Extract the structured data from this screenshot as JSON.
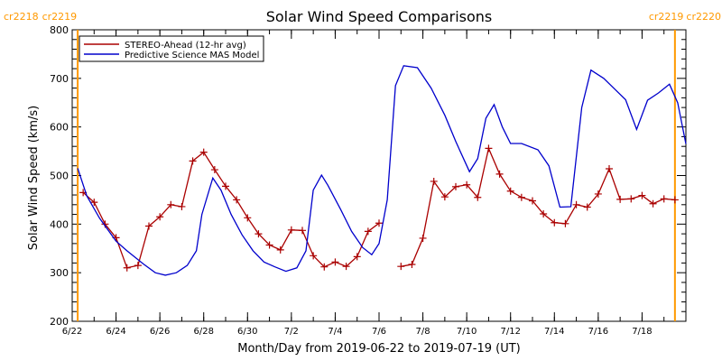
{
  "chart_data": {
    "type": "line",
    "title": "Solar Wind Speed Comparisons",
    "xlabel": "Month/Day from 2019-06-22 to 2019-07-19 (UT)",
    "ylabel": "Solar Wind Speed (km/s)",
    "xlim": [
      "2019-06-22",
      "2019-07-20"
    ],
    "ylim": [
      200,
      800
    ],
    "yticks": [
      200,
      300,
      400,
      500,
      600,
      700,
      800
    ],
    "xticks": [
      {
        "date": "2019-06-22",
        "label": "6/22"
      },
      {
        "date": "2019-06-24",
        "label": "6/24"
      },
      {
        "date": "2019-06-26",
        "label": "6/26"
      },
      {
        "date": "2019-06-28",
        "label": "6/28"
      },
      {
        "date": "2019-06-30",
        "label": "6/30"
      },
      {
        "date": "2019-07-02",
        "label": "7/2"
      },
      {
        "date": "2019-07-04",
        "label": "7/4"
      },
      {
        "date": "2019-07-06",
        "label": "7/6"
      },
      {
        "date": "2019-07-08",
        "label": "7/8"
      },
      {
        "date": "2019-07-10",
        "label": "7/10"
      },
      {
        "date": "2019-07-12",
        "label": "7/12"
      },
      {
        "date": "2019-07-14",
        "label": "7/14"
      },
      {
        "date": "2019-07-16",
        "label": "7/16"
      },
      {
        "date": "2019-07-18",
        "label": "7/18"
      }
    ],
    "carrington_lines": [
      {
        "date": "2019-06-22 06:00",
        "left_label": "cr2218",
        "right_label": "cr2219",
        "color": "#ff9900"
      },
      {
        "date": "2019-07-19 12:00",
        "left_label": "cr2219",
        "right_label": "cr2220",
        "color": "#ff9900"
      }
    ],
    "legend_position": "top-left",
    "series": [
      {
        "name": "STEREO-Ahead (12-hr avg)",
        "color": "#aa0000",
        "marker": "plus",
        "segments": [
          [
            [
              "2019-06-22 12:00",
              465
            ],
            [
              "2019-06-23 00:00",
              445
            ],
            [
              "2019-06-23 12:00",
              400
            ],
            [
              "2019-06-24 00:00",
              372
            ],
            [
              "2019-06-24 12:00",
              310
            ],
            [
              "2019-06-25 00:00",
              315
            ],
            [
              "2019-06-25 12:00",
              396
            ],
            [
              "2019-06-26 00:00",
              415
            ],
            [
              "2019-06-26 12:00",
              440
            ],
            [
              "2019-06-27 00:00",
              436
            ],
            [
              "2019-06-27 12:00",
              530
            ],
            [
              "2019-06-28 00:00",
              548
            ],
            [
              "2019-06-28 12:00",
              512
            ],
            [
              "2019-06-29 00:00",
              478
            ],
            [
              "2019-06-29 12:00",
              450
            ],
            [
              "2019-06-30 00:00",
              413
            ],
            [
              "2019-06-30 12:00",
              380
            ],
            [
              "2019-07-01 00:00",
              357
            ],
            [
              "2019-07-01 12:00",
              347
            ],
            [
              "2019-07-02 00:00",
              388
            ],
            [
              "2019-07-02 12:00",
              387
            ],
            [
              "2019-07-03 00:00",
              335
            ],
            [
              "2019-07-03 12:00",
              312
            ],
            [
              "2019-07-04 00:00",
              322
            ],
            [
              "2019-07-04 12:00",
              313
            ],
            [
              "2019-07-05 00:00",
              333
            ],
            [
              "2019-07-05 12:00",
              385
            ],
            [
              "2019-07-06 00:00",
              402
            ]
          ],
          [
            [
              "2019-07-07 00:00",
              313
            ],
            [
              "2019-07-07 12:00",
              317
            ],
            [
              "2019-07-08 00:00",
              371
            ],
            [
              "2019-07-08 12:00",
              488
            ],
            [
              "2019-07-09 00:00",
              456
            ],
            [
              "2019-07-09 12:00",
              477
            ],
            [
              "2019-07-10 00:00",
              481
            ],
            [
              "2019-07-10 12:00",
              455
            ],
            [
              "2019-07-11 00:00",
              556
            ],
            [
              "2019-07-11 12:00",
              503
            ],
            [
              "2019-07-12 00:00",
              468
            ],
            [
              "2019-07-12 12:00",
              455
            ],
            [
              "2019-07-13 00:00",
              448
            ],
            [
              "2019-07-13 12:00",
              421
            ],
            [
              "2019-07-14 00:00",
              403
            ],
            [
              "2019-07-14 12:00",
              401
            ],
            [
              "2019-07-15 00:00",
              440
            ],
            [
              "2019-07-15 12:00",
              435
            ],
            [
              "2019-07-16 00:00",
              462
            ],
            [
              "2019-07-16 12:00",
              514
            ],
            [
              "2019-07-17 00:00",
              451
            ],
            [
              "2019-07-17 12:00",
              452
            ],
            [
              "2019-07-18 00:00",
              459
            ],
            [
              "2019-07-18 12:00",
              442
            ],
            [
              "2019-07-19 00:00",
              452
            ],
            [
              "2019-07-19 12:00",
              450
            ]
          ]
        ]
      },
      {
        "name": "Predictive Science MAS Model",
        "color": "#0000cc",
        "marker": "none",
        "segments": [
          [
            [
              "2019-06-22 06:00",
              515
            ],
            [
              "2019-06-22 16:00",
              458
            ],
            [
              "2019-06-23 06:00",
              412
            ],
            [
              "2019-06-24 00:00",
              365
            ],
            [
              "2019-06-24 12:00",
              345
            ],
            [
              "2019-06-25 06:00",
              318
            ],
            [
              "2019-06-25 19:00",
              300
            ],
            [
              "2019-06-26 06:00",
              295
            ],
            [
              "2019-06-26 18:00",
              300
            ],
            [
              "2019-06-27 06:00",
              315
            ],
            [
              "2019-06-27 16:00",
              345
            ],
            [
              "2019-06-27 22:00",
              420
            ],
            [
              "2019-06-28 10:00",
              495
            ],
            [
              "2019-06-28 19:00",
              470
            ],
            [
              "2019-06-29 06:00",
              420
            ],
            [
              "2019-06-29 18:00",
              378
            ],
            [
              "2019-06-30 06:00",
              345
            ],
            [
              "2019-06-30 18:00",
              322
            ],
            [
              "2019-07-01 06:00",
              312
            ],
            [
              "2019-07-01 18:00",
              303
            ],
            [
              "2019-07-02 06:00",
              310
            ],
            [
              "2019-07-02 16:00",
              345
            ],
            [
              "2019-07-03 00:00",
              470
            ],
            [
              "2019-07-03 09:00",
              501
            ],
            [
              "2019-07-03 16:00",
              480
            ],
            [
              "2019-07-04 06:00",
              430
            ],
            [
              "2019-07-04 18:00",
              385
            ],
            [
              "2019-07-05 06:00",
              352
            ],
            [
              "2019-07-05 16:00",
              337
            ],
            [
              "2019-07-06 00:00",
              360
            ],
            [
              "2019-07-06 09:00",
              450
            ],
            [
              "2019-07-06 18:00",
              685
            ],
            [
              "2019-07-07 03:00",
              726
            ],
            [
              "2019-07-07 18:00",
              722
            ],
            [
              "2019-07-08 09:00",
              680
            ],
            [
              "2019-07-09 00:00",
              624
            ],
            [
              "2019-07-09 12:00",
              570
            ],
            [
              "2019-07-10 03:00",
              508
            ],
            [
              "2019-07-10 12:00",
              535
            ],
            [
              "2019-07-10 21:00",
              618
            ],
            [
              "2019-07-11 06:00",
              646
            ],
            [
              "2019-07-11 15:00",
              600
            ],
            [
              "2019-07-12 00:00",
              566
            ],
            [
              "2019-07-12 12:00",
              566
            ],
            [
              "2019-07-13 06:00",
              553
            ],
            [
              "2019-07-13 18:00",
              520
            ],
            [
              "2019-07-14 06:00",
              435
            ],
            [
              "2019-07-14 18:00",
              436
            ],
            [
              "2019-07-15 06:00",
              640
            ],
            [
              "2019-07-15 16:00",
              717
            ],
            [
              "2019-07-16 06:00",
              700
            ],
            [
              "2019-07-16 18:00",
              678
            ],
            [
              "2019-07-17 06:00",
              656
            ],
            [
              "2019-07-17 18:00",
              595
            ],
            [
              "2019-07-18 06:00",
              655
            ],
            [
              "2019-07-18 18:00",
              670
            ],
            [
              "2019-07-19 06:00",
              688
            ],
            [
              "2019-07-19 15:00",
              650
            ],
            [
              "2019-07-20 00:00",
              565
            ]
          ]
        ]
      }
    ]
  }
}
